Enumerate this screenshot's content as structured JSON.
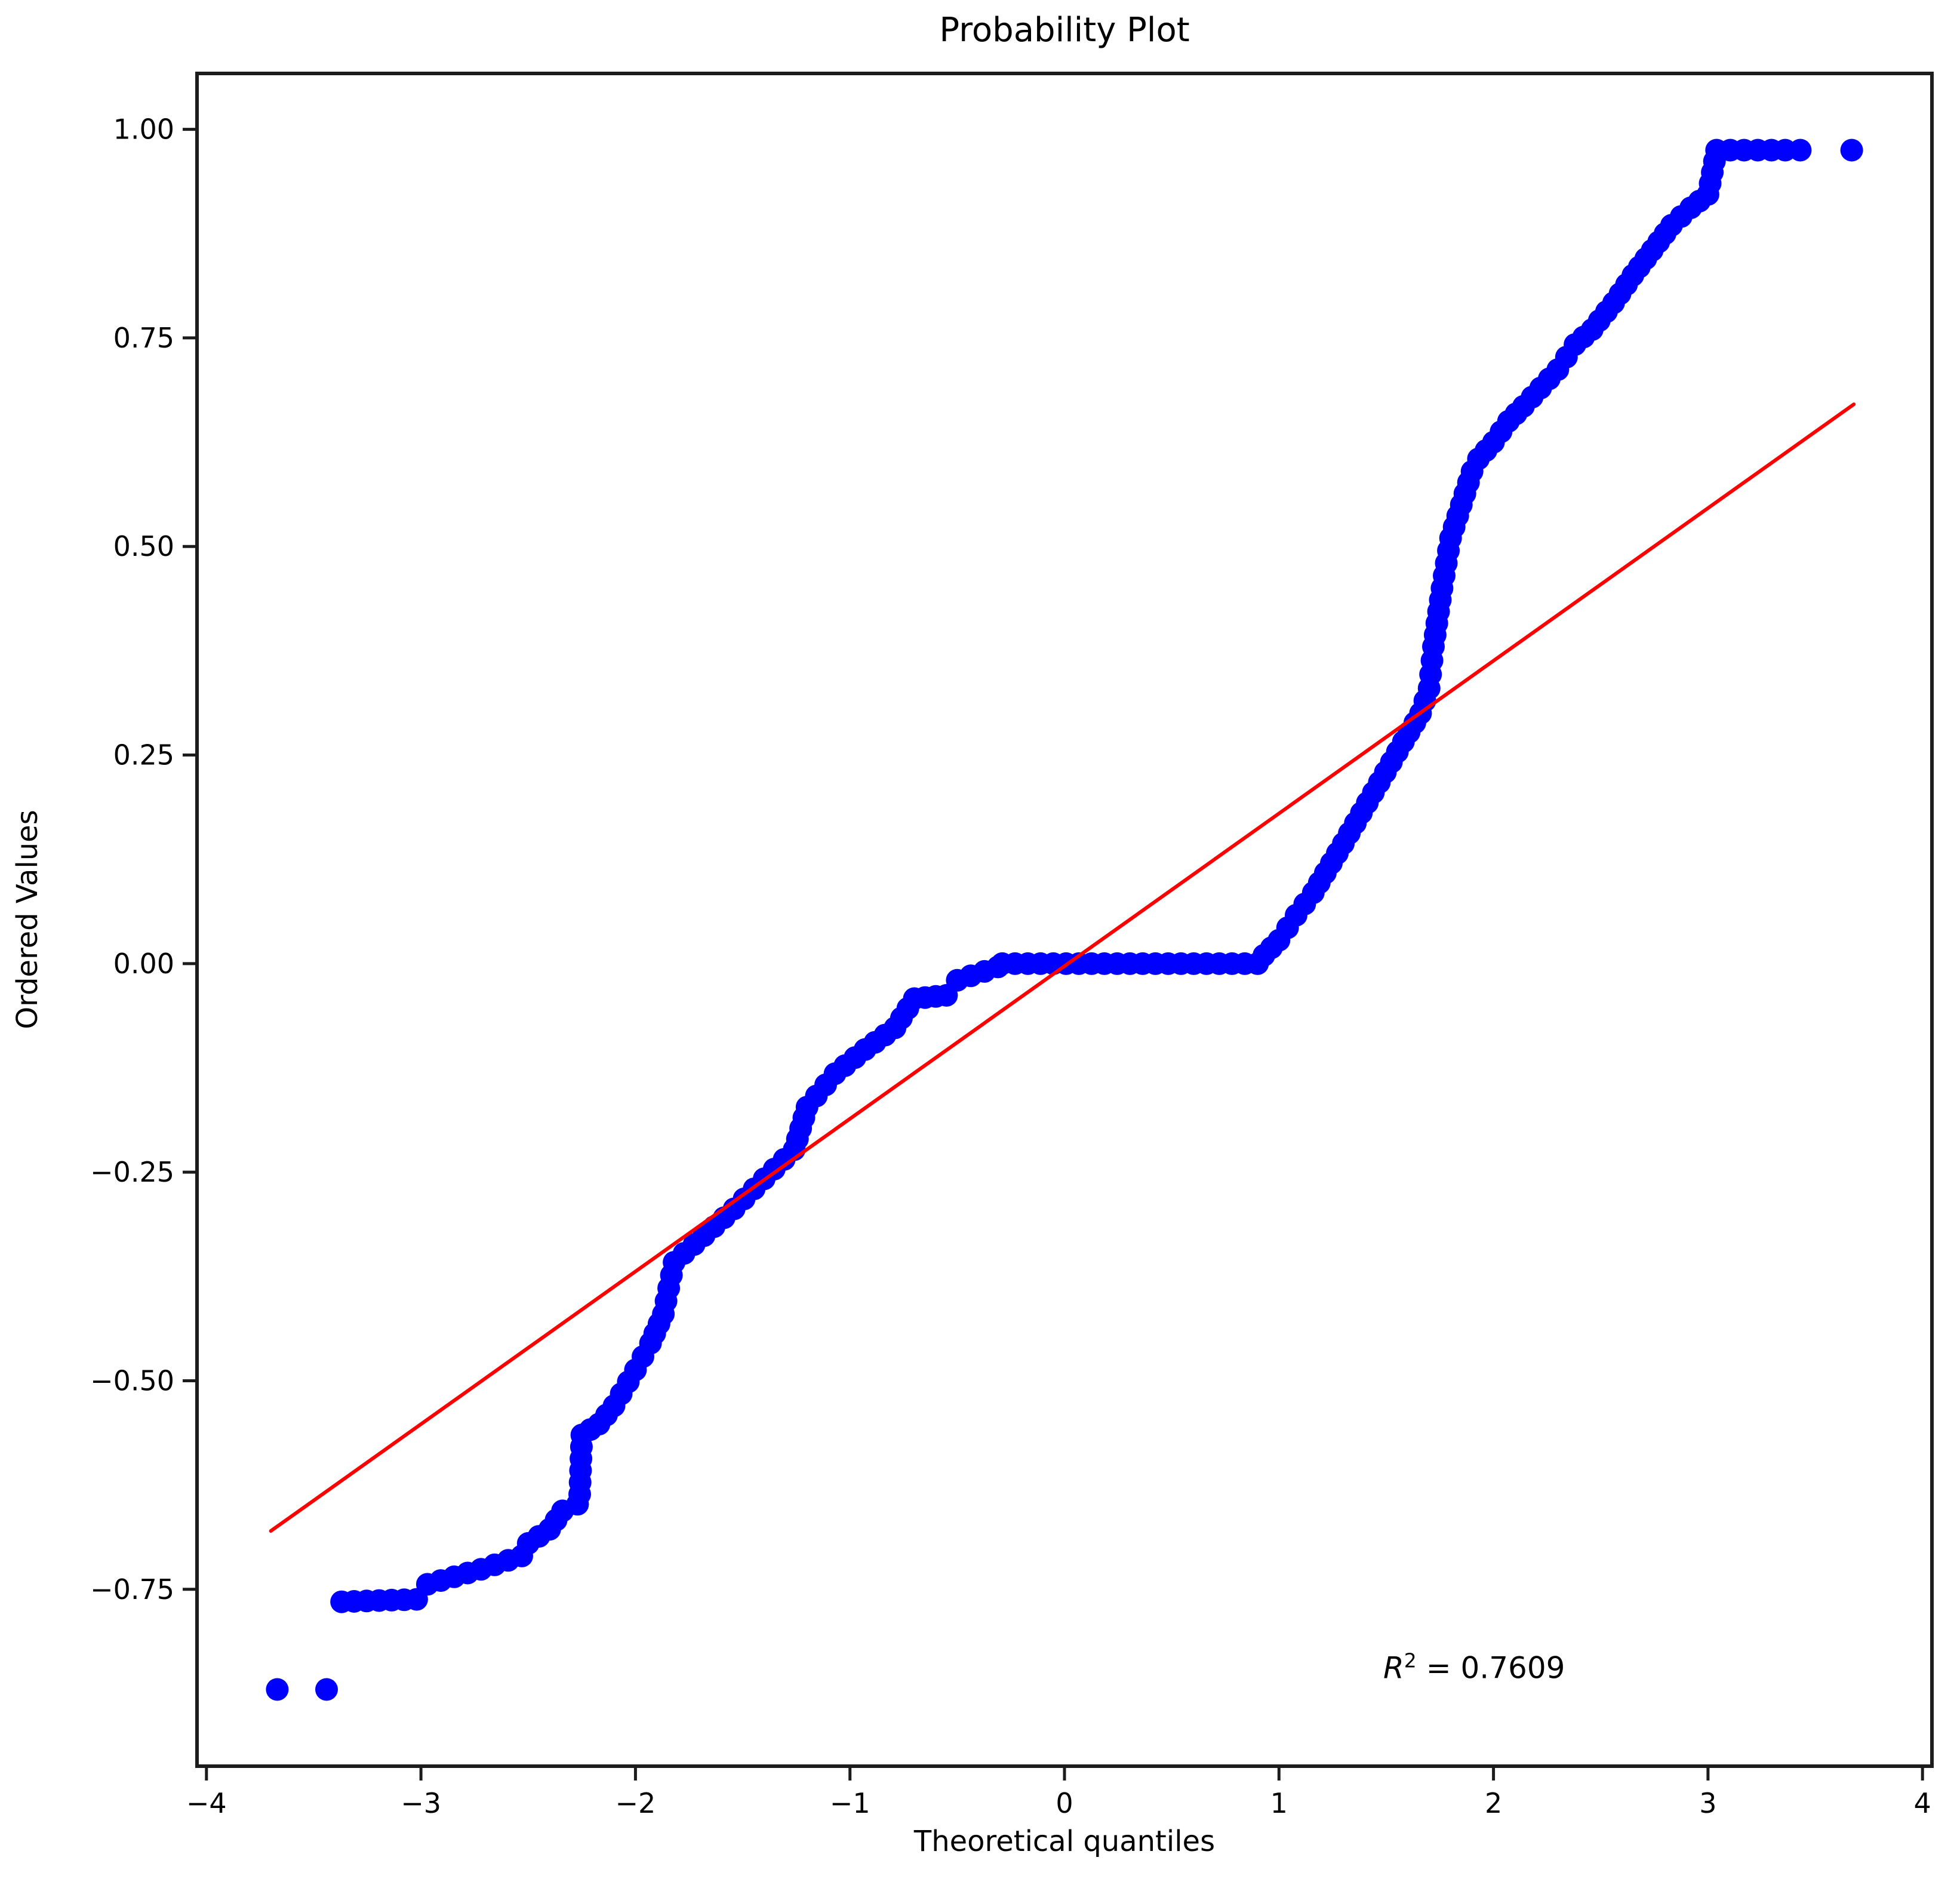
{
  "chart_data": {
    "type": "scatter",
    "title": "Probability Plot",
    "xlabel": "Theoretical quantiles",
    "ylabel": "Ordered Values",
    "xlim": [
      -4.044,
      4.044
    ],
    "ylim": [
      -0.962,
      1.067
    ],
    "grid": false,
    "legend": null,
    "xticks": {
      "values": [
        -4,
        -3,
        -2,
        -1,
        0,
        1,
        2,
        3,
        4
      ],
      "labels": [
        "−4",
        "−3",
        "−2",
        "−1",
        "0",
        "1",
        "2",
        "3",
        "4"
      ]
    },
    "yticks": {
      "values": [
        1.0,
        0.75,
        0.5,
        0.25,
        0.0,
        -0.25,
        -0.5,
        -0.75
      ],
      "labels": [
        "1.00",
        "0.75",
        "0.50",
        "0.25",
        "0.00",
        "−0.25",
        "−0.50",
        "−0.75"
      ]
    },
    "colors": {
      "marker": "#0000ff",
      "fit_line": "#ff0000",
      "spine": "#1c1c1c",
      "tick": "#1c1c1c",
      "text": "#000000",
      "background": "#ffffff"
    },
    "annotation": {
      "variable": "R",
      "superscript": "2",
      "rest": " = 0.7609",
      "r_squared": 0.7609,
      "position": [
        1.91,
        -0.843
      ]
    },
    "series": [
      {
        "name": "ordered-values",
        "marker_radius_px": 19,
        "band_dot_spacing_px": 21,
        "band_profile": [
          [
            -3.37,
            -0.765
          ],
          [
            -3.02,
            -0.762
          ],
          [
            -2.97,
            -0.744
          ],
          [
            -2.72,
            -0.726
          ],
          [
            -2.53,
            -0.71
          ],
          [
            -2.5,
            -0.695
          ],
          [
            -2.4,
            -0.678
          ],
          [
            -2.34,
            -0.656
          ],
          [
            -2.27,
            -0.648
          ],
          [
            -2.26,
            -0.636
          ],
          [
            -2.25,
            -0.565
          ],
          [
            -2.17,
            -0.552
          ],
          [
            -2.1,
            -0.53
          ],
          [
            -2.0,
            -0.487
          ],
          [
            -1.93,
            -0.455
          ],
          [
            -1.87,
            -0.42
          ],
          [
            -1.82,
            -0.358
          ],
          [
            -1.68,
            -0.326
          ],
          [
            -1.54,
            -0.294
          ],
          [
            -1.4,
            -0.258
          ],
          [
            -1.26,
            -0.223
          ],
          [
            -1.2,
            -0.172
          ],
          [
            -1.07,
            -0.132
          ],
          [
            -0.93,
            -0.103
          ],
          [
            -0.79,
            -0.077
          ],
          [
            -0.7,
            -0.042
          ],
          [
            -0.55,
            -0.038
          ],
          [
            -0.5,
            -0.02
          ],
          [
            -0.31,
            -0.004
          ],
          [
            -0.29,
            0.0
          ],
          [
            0.9,
            0.0
          ],
          [
            0.93,
            0.01
          ],
          [
            1.0,
            0.028
          ],
          [
            1.08,
            0.058
          ],
          [
            1.16,
            0.085
          ],
          [
            1.3,
            0.144
          ],
          [
            1.44,
            0.205
          ],
          [
            1.58,
            0.266
          ],
          [
            1.66,
            0.3
          ],
          [
            1.7,
            0.33
          ],
          [
            1.72,
            0.38
          ],
          [
            1.76,
            0.45
          ],
          [
            1.8,
            0.51
          ],
          [
            1.85,
            0.55
          ],
          [
            1.9,
            0.59
          ],
          [
            1.93,
            0.605
          ],
          [
            2.0,
            0.625
          ],
          [
            2.07,
            0.65
          ],
          [
            2.14,
            0.668
          ],
          [
            2.22,
            0.69
          ],
          [
            2.3,
            0.712
          ],
          [
            2.38,
            0.742
          ],
          [
            2.46,
            0.76
          ],
          [
            2.56,
            0.792
          ],
          [
            2.65,
            0.825
          ],
          [
            2.74,
            0.855
          ],
          [
            2.83,
            0.885
          ],
          [
            2.92,
            0.906
          ],
          [
            3.0,
            0.922
          ],
          [
            3.04,
            0.975
          ],
          [
            3.36,
            0.975
          ]
        ],
        "isolated_points": [
          [
            -3.67,
            -0.87
          ],
          [
            -3.44,
            -0.87
          ],
          [
            3.43,
            0.975
          ],
          [
            3.67,
            0.975
          ]
        ]
      },
      {
        "name": "least-squares-fit",
        "slope": 0.183,
        "intercept": -0.003,
        "x_range": [
          -3.7,
          3.68
        ],
        "stroke_width_px": 6
      }
    ]
  }
}
